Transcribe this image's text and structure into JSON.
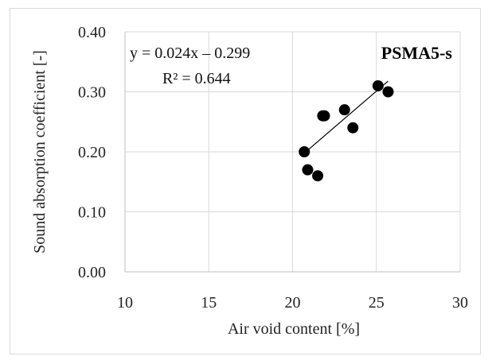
{
  "chart_data": {
    "type": "scatter",
    "title": "PSMA5-s",
    "xlabel": "Air void content [%]",
    "ylabel": "Sound absorption coefficient [-]",
    "xlim": [
      10,
      30
    ],
    "ylim": [
      0.0,
      0.4
    ],
    "x_ticks": [
      "10",
      "15",
      "20",
      "25",
      "30"
    ],
    "y_ticks": [
      "0.00",
      "0.10",
      "0.20",
      "0.30",
      "0.40"
    ],
    "grid": true,
    "series": [
      {
        "points": [
          {
            "x": 20.7,
            "y": 0.2
          },
          {
            "x": 20.9,
            "y": 0.17
          },
          {
            "x": 21.5,
            "y": 0.16
          },
          {
            "x": 21.8,
            "y": 0.26
          },
          {
            "x": 21.9,
            "y": 0.26
          },
          {
            "x": 23.1,
            "y": 0.27
          },
          {
            "x": 23.6,
            "y": 0.24
          },
          {
            "x": 25.1,
            "y": 0.31
          },
          {
            "x": 25.7,
            "y": 0.3
          }
        ],
        "color": "#000000"
      }
    ],
    "trendline": {
      "slope": 0.024,
      "intercept": -0.299,
      "x_range": [
        20.7,
        25.7
      ],
      "color": "#000000"
    },
    "annotations": {
      "equation": "y = 0.024x – 0.299",
      "r_squared": "R² = 0.644"
    }
  }
}
